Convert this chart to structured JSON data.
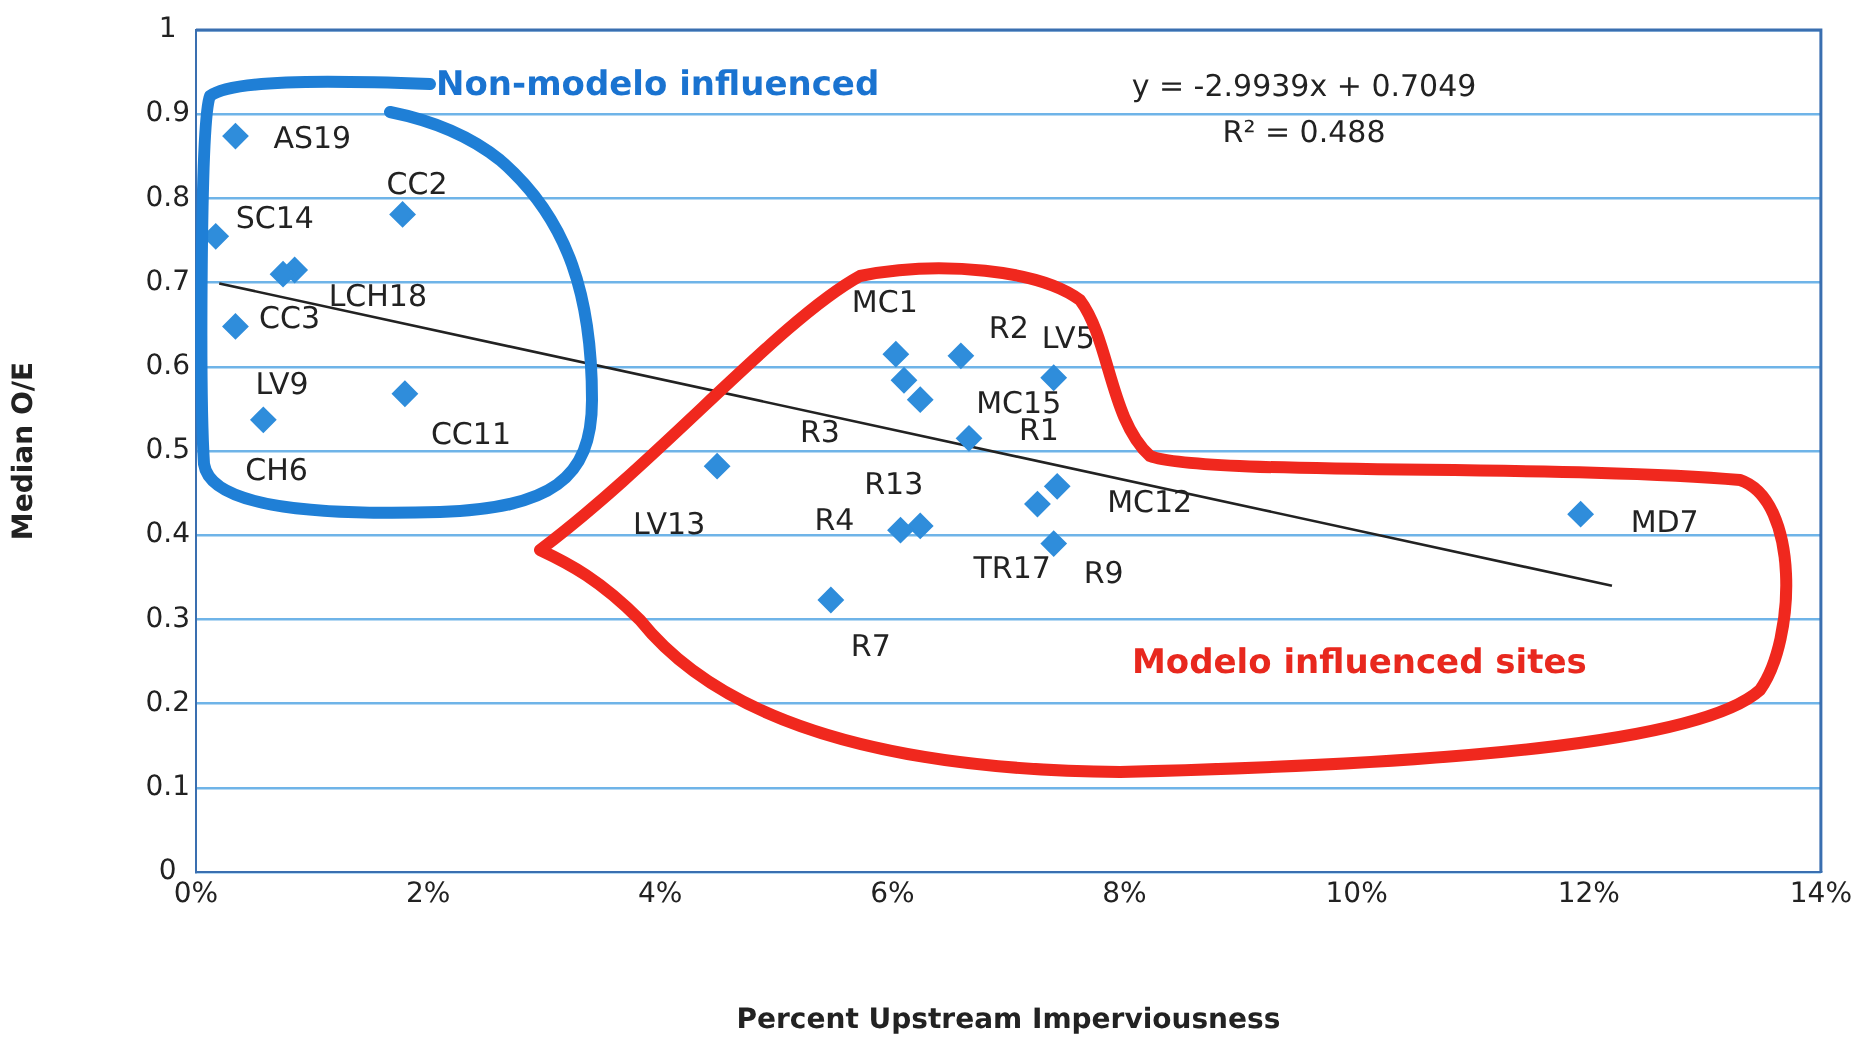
{
  "chart_data": {
    "type": "scatter",
    "xlabel": "Percent Upstream Imperviousness",
    "ylabel": "Median O/E",
    "xlim": [
      0,
      14
    ],
    "xticks": [
      {
        "value": 0,
        "label": "0%"
      },
      {
        "value": 2,
        "label": "2%"
      },
      {
        "value": 4,
        "label": "4%"
      },
      {
        "value": 6,
        "label": "6%"
      },
      {
        "value": 8,
        "label": "8%"
      },
      {
        "value": 10,
        "label": "10%"
      },
      {
        "value": 12,
        "label": "12%"
      },
      {
        "value": 14,
        "label": "14%"
      }
    ],
    "ylim": [
      0,
      1
    ],
    "yticks": [
      0,
      0.1,
      0.2,
      0.3,
      0.4,
      0.5,
      0.6,
      0.7,
      0.8,
      0.9,
      1
    ],
    "grid": "y",
    "legend": false,
    "series": [
      {
        "type": "scatter",
        "marker": "diamond",
        "color": "#2f8ddb",
        "x": [
          0.34,
          0.17,
          0.85,
          0.75,
          0.34,
          0.58,
          1.78,
          1.8,
          6.03,
          6.1,
          6.24,
          6.66,
          6.59,
          7.39,
          7.42,
          7.25,
          7.39,
          6.24,
          6.07,
          4.49,
          5.47,
          11.93
        ],
        "values": [
          0.874,
          0.755,
          0.715,
          0.71,
          0.648,
          0.537,
          0.781,
          0.568,
          0.615,
          0.584,
          0.561,
          0.515,
          0.613,
          0.587,
          0.458,
          0.437,
          0.39,
          0.411,
          0.406,
          0.482,
          0.323,
          0.425
        ]
      },
      {
        "type": "line",
        "color": "#222222",
        "x": [
          0.2,
          12.2
        ],
        "values": [
          0.699,
          0.34
        ]
      }
    ],
    "annotations": [
      {
        "text": "AS19",
        "x": 0.34,
        "y": 0.874
      },
      {
        "text": "SC14",
        "x": 0.17,
        "y": 0.755
      },
      {
        "text": "LCH18",
        "x": 0.85,
        "y": 0.715
      },
      {
        "text": "CC3",
        "x": 0.75,
        "y": 0.71
      },
      {
        "text": "LV9",
        "x": 0.34,
        "y": 0.648
      },
      {
        "text": "CH6",
        "x": 0.58,
        "y": 0.537
      },
      {
        "text": "CC2",
        "x": 1.78,
        "y": 0.781
      },
      {
        "text": "CC11",
        "x": 1.8,
        "y": 0.568
      },
      {
        "text": "MC1",
        "x": 6.03,
        "y": 0.615
      },
      {
        "text": "R3",
        "x": 6.1,
        "y": 0.584
      },
      {
        "text": "MC15",
        "x": 6.24,
        "y": 0.561
      },
      {
        "text": "R1",
        "x": 6.66,
        "y": 0.515
      },
      {
        "text": "R2",
        "x": 6.59,
        "y": 0.613
      },
      {
        "text": "LV5",
        "x": 7.39,
        "y": 0.587
      },
      {
        "text": "MC12",
        "x": 7.42,
        "y": 0.458
      },
      {
        "text": "TR17",
        "x": 7.25,
        "y": 0.437
      },
      {
        "text": "R9",
        "x": 7.39,
        "y": 0.39
      },
      {
        "text": "R13",
        "x": 6.24,
        "y": 0.411
      },
      {
        "text": "R4",
        "x": 6.07,
        "y": 0.406
      },
      {
        "text": "LV13",
        "x": 4.49,
        "y": 0.482
      },
      {
        "text": "R7",
        "x": 5.47,
        "y": 0.323
      },
      {
        "text": "MD7",
        "x": 11.93,
        "y": 0.425
      },
      "y = -2.9939x + 0.7049",
      "R² = 0.488",
      "Non-modelo influenced",
      "Modelo influenced sites"
    ]
  }
}
